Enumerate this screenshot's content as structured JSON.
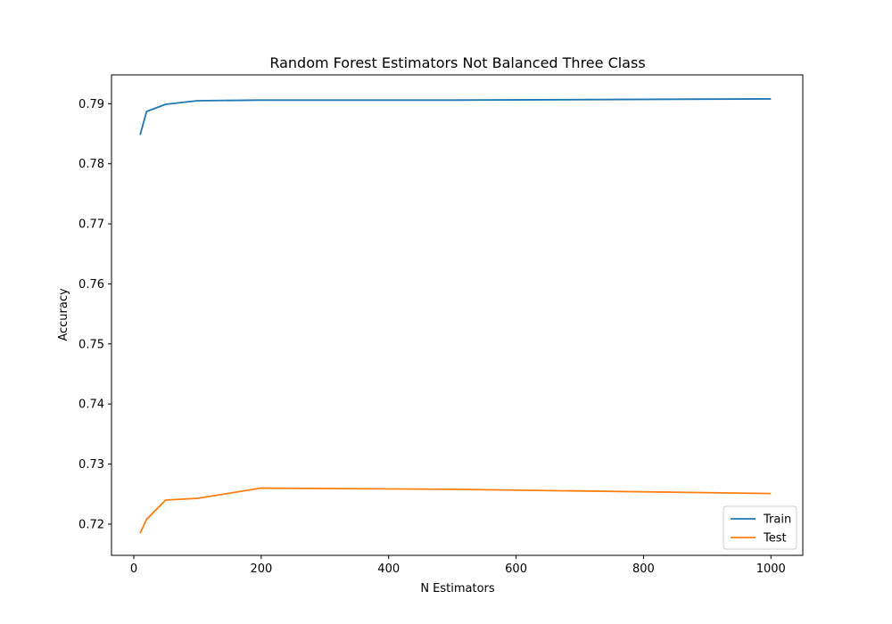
{
  "chart_data": {
    "type": "line",
    "title": "Random Forest Estimators Not Balanced Three Class",
    "xlabel": "N Estimators",
    "ylabel": "Accuracy",
    "xlim": [
      -35,
      1050
    ],
    "ylim": [
      0.7148,
      0.7948
    ],
    "xticks": [
      0,
      200,
      400,
      600,
      800,
      1000
    ],
    "yticks": [
      0.72,
      0.73,
      0.74,
      0.75,
      0.76,
      0.77,
      0.78,
      0.79
    ],
    "xtick_labels": [
      "0",
      "200",
      "400",
      "600",
      "800",
      "1000"
    ],
    "ytick_labels": [
      "0.72",
      "0.73",
      "0.74",
      "0.75",
      "0.76",
      "0.77",
      "0.78",
      "0.79"
    ],
    "grid": false,
    "legend": "lower-right",
    "x": [
      10,
      20,
      50,
      100,
      200,
      500,
      1000
    ],
    "series": [
      {
        "name": "Train",
        "color": "#1f77b4",
        "values": [
          0.7848,
          0.7887,
          0.7899,
          0.7905,
          0.7906,
          0.7906,
          0.7908
        ]
      },
      {
        "name": "Test",
        "color": "#ff7f0e",
        "values": [
          0.7185,
          0.7208,
          0.724,
          0.7243,
          0.726,
          0.7258,
          0.7251
        ]
      }
    ]
  }
}
